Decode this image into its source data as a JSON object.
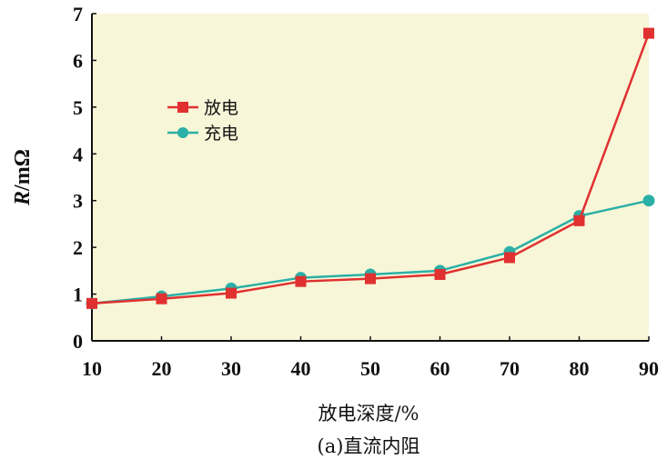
{
  "chart_data": {
    "type": "line",
    "x": [
      10,
      20,
      30,
      40,
      50,
      60,
      70,
      80,
      90
    ],
    "series": [
      {
        "name": "放电",
        "color": "#e03030",
        "marker": "square",
        "values": [
          0.8,
          0.9,
          1.02,
          1.27,
          1.33,
          1.42,
          1.78,
          2.57,
          6.58
        ]
      },
      {
        "name": "充电",
        "color": "#2ab0a6",
        "marker": "circle",
        "values": [
          0.8,
          0.95,
          1.12,
          1.35,
          1.42,
          1.5,
          1.9,
          2.67,
          3.0
        ]
      }
    ],
    "xlabel": "放电深度/%",
    "ylabel": "R/mΩ",
    "ylabel_prefix": "R",
    "ylabel_suffix": "/mΩ",
    "caption": "(a)直流内阻",
    "xlim": [
      10,
      90
    ],
    "ylim": [
      0,
      7
    ],
    "x_ticks": [
      "10",
      "20",
      "30",
      "40",
      "50",
      "60",
      "70",
      "80",
      "90"
    ],
    "y_ticks": [
      "0",
      "1",
      "2",
      "3",
      "4",
      "5",
      "6",
      "7"
    ],
    "grid": false,
    "legend_position": "upper-left",
    "plot_background": "#f8f6d8"
  }
}
